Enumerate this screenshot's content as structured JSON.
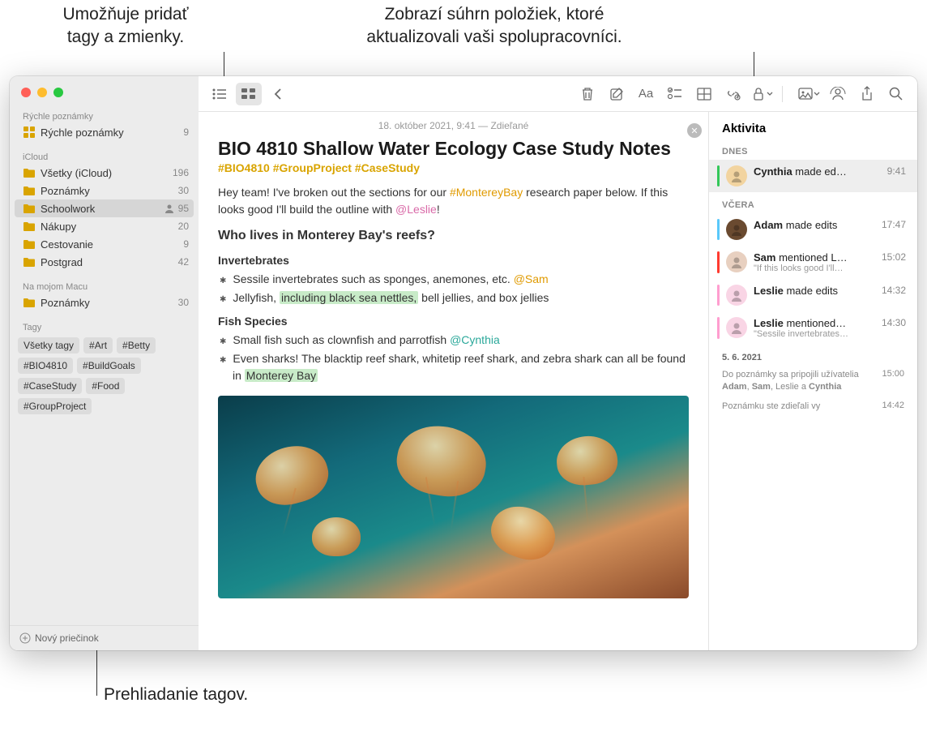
{
  "callouts": {
    "topLeft": "Umožňuje pridať\ntagy a zmienky.",
    "topRight": "Zobrazí súhrn položiek, ktoré\naktualizovali vaši spolupracovníci.",
    "bottom": "Prehliadanie tagov."
  },
  "sidebar": {
    "quickNotesHeader": "Rýchle poznámky",
    "quickNotes": {
      "label": "Rýchle poznámky",
      "count": "9"
    },
    "icloudHeader": "iCloud",
    "folders": [
      {
        "label": "Všetky (iCloud)",
        "count": "196",
        "shared": false
      },
      {
        "label": "Poznámky",
        "count": "30",
        "shared": false
      },
      {
        "label": "Schoolwork",
        "count": "95",
        "shared": true,
        "selected": true
      },
      {
        "label": "Nákupy",
        "count": "20",
        "shared": false
      },
      {
        "label": "Cestovanie",
        "count": "9",
        "shared": false
      },
      {
        "label": "Postgrad",
        "count": "42",
        "shared": false
      }
    ],
    "onMyMacHeader": "Na mojom Macu",
    "onMyMac": {
      "label": "Poznámky",
      "count": "30"
    },
    "tagsHeader": "Tagy",
    "tags": [
      "Všetky tagy",
      "#Art",
      "#Betty",
      "#BIO4810",
      "#BuildGoals",
      "#CaseStudy",
      "#Food",
      "#GroupProject"
    ],
    "newFolder": "Nový priečinok"
  },
  "note": {
    "meta": "18. október 2021, 9:41 — Zdieľané",
    "title": "BIO 4810 Shallow Water Ecology Case Study Notes",
    "tags": "#BIO4810 #GroupProject #CaseStudy",
    "intro_1": "Hey team! I've broken out the sections for our ",
    "intro_tag": "#MontereyBay",
    "intro_2": " research paper below. If this looks good I'll build the outline with ",
    "intro_mention": "@Leslie",
    "intro_3": "!",
    "h1": "Who lives in Monterey Bay's reefs?",
    "sec1_title": "Invertebrates",
    "sec1_b1a": "Sessile invertebrates such as sponges, anemones, etc. ",
    "sec1_b1_mention": "@Sam",
    "sec1_b2a": "Jellyfish, ",
    "sec1_b2_hl": "including black sea nettles,",
    "sec1_b2b": " bell jellies, and box jellies",
    "sec2_title": "Fish Species",
    "sec2_b1a": "Small fish such as clownfish and parrotfish ",
    "sec2_b1_mention": "@Cynthia",
    "sec2_b2a": "Even sharks! The blacktip reef shark, whitetip reef shark, and zebra shark can all be found in ",
    "sec2_b2_hl": "Monterey Bay"
  },
  "activity": {
    "title": "Aktivita",
    "todayLabel": "DNES",
    "yesterdayLabel": "VČERA",
    "today": [
      {
        "name": "Cynthia",
        "rest": " made ed…",
        "time": "9:41",
        "bar": "#34c759",
        "avatar": "#f2d4a0"
      }
    ],
    "yesterday": [
      {
        "name": "Adam",
        "rest": " made edits",
        "sub": "",
        "time": "17:47",
        "bar": "#5ac8fa",
        "avatar": "#6a4a30"
      },
      {
        "name": "Sam",
        "rest": " mentioned L…",
        "sub": "\"If this looks good I'll…",
        "time": "15:02",
        "bar": "#ff3b30",
        "avatar": "#e8d0c0"
      },
      {
        "name": "Leslie",
        "rest": " made edits",
        "sub": "",
        "time": "14:32",
        "bar": "#ff9ecf",
        "avatar": "#f9d5e5"
      },
      {
        "name": "Leslie",
        "rest": " mentioned…",
        "sub": "\"Sessile invertebrates…",
        "time": "14:30",
        "bar": "#ff9ecf",
        "avatar": "#f9d5e5"
      }
    ],
    "dateLabel": "5. 6. 2021",
    "log1_a": "Do poznámky sa pripojili užívatelia ",
    "log1_b": "Adam",
    "log1_c": ", ",
    "log1_d": "Sam",
    "log1_e": ", Leslie a ",
    "log1_f": "Cynthia",
    "log1_time": "15:00",
    "log2": "Poznámku ste zdieľali vy",
    "log2_time": "14:42"
  },
  "colors": {
    "folderIcon": "#d9a400",
    "quickNotesIcon": "#d9a400"
  }
}
